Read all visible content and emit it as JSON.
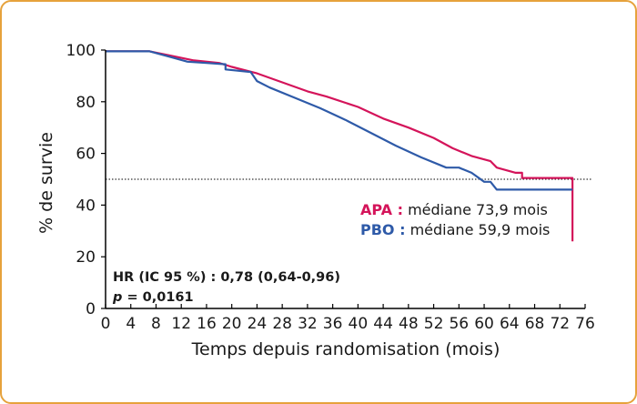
{
  "colors": {
    "apa": "#d4145a",
    "pbo": "#2e5aa8",
    "axis": "#000000",
    "frame": "#e6a23c"
  },
  "chart_data": {
    "type": "line",
    "title": "",
    "xlabel": "Temps depuis randomisation (mois)",
    "ylabel": "% de survie",
    "xlim": [
      0,
      76
    ],
    "ylim": [
      0,
      100
    ],
    "xticks": [
      0,
      4,
      8,
      12,
      16,
      20,
      24,
      28,
      32,
      36,
      40,
      44,
      48,
      52,
      56,
      60,
      64,
      68,
      72,
      76
    ],
    "yticks": [
      0,
      20,
      40,
      60,
      80,
      100
    ],
    "reference_line": {
      "y": 50,
      "style": "dotted"
    },
    "grid": false,
    "series": [
      {
        "name": "APA",
        "color": "#d4145a",
        "x": [
          0,
          7,
          10,
          14,
          18,
          20,
          24,
          28,
          32,
          35,
          40,
          44,
          48,
          52,
          55,
          58,
          61,
          62,
          65,
          66,
          66,
          74,
          74,
          74
        ],
        "y": [
          99.5,
          99.5,
          98,
          96,
          95,
          93.5,
          91,
          87.5,
          84,
          82,
          78,
          73.5,
          70,
          66,
          62,
          59,
          57,
          54.5,
          52.5,
          52.5,
          50.5,
          50.5,
          49.5,
          26
        ]
      },
      {
        "name": "PBO",
        "color": "#2e5aa8",
        "x": [
          0,
          7,
          10,
          13,
          16,
          19,
          19,
          23,
          24,
          26,
          30,
          34,
          38,
          42,
          46,
          50,
          54,
          56,
          58,
          60,
          61,
          62,
          74
        ],
        "y": [
          99.5,
          99.5,
          97.5,
          95.5,
          95,
          94.5,
          92.5,
          91.5,
          88,
          85.5,
          81.5,
          77.5,
          73,
          68,
          63,
          58.5,
          54.5,
          54.5,
          52.5,
          49,
          49,
          46,
          46
        ]
      }
    ],
    "legend": [
      {
        "key": "APA :",
        "text": " médiane 73,9 mois"
      },
      {
        "key": "PBO :",
        "text": " médiane 59,9 mois"
      }
    ],
    "annotations": {
      "hr": "HR (IC 95 %) : 0,78 (0,64-0,96)",
      "p_symbol": "p",
      "p_value": " = 0,0161"
    }
  }
}
